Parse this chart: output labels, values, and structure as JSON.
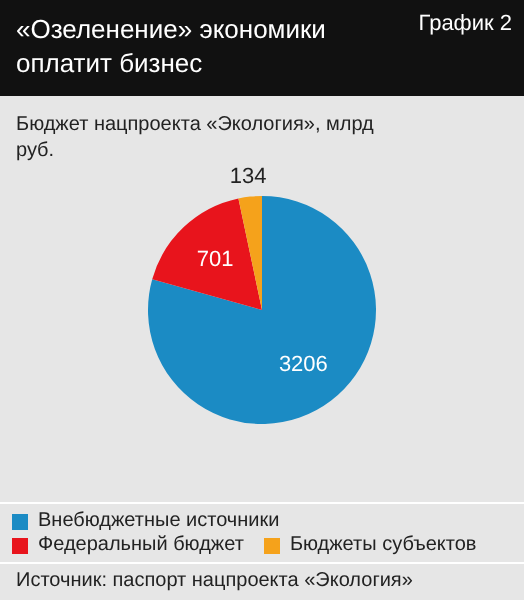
{
  "chart_data": {
    "type": "pie",
    "title": "«Озеленение» экономики оплатит бизнес",
    "subtitle": "Бюджет нацпроекта «Экология», млрд руб.",
    "categories": [
      "Внебюджетные источники",
      "Федеральный бюджет",
      "Бюджеты субъектов"
    ],
    "values": [
      3206,
      701,
      134
    ],
    "colors": [
      "#1b8bc4",
      "#e8141c",
      "#f5a21b"
    ],
    "data_labels": true,
    "legend": "bottom",
    "annotations": [
      "График 2",
      "Источник: паспорт нацпроекта «Экология»"
    ]
  }
}
